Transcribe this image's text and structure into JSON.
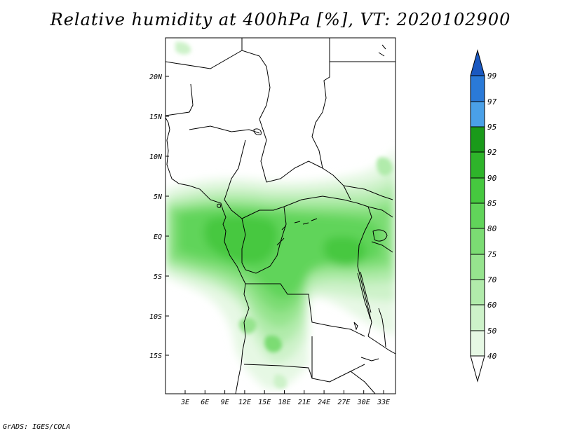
{
  "title": "Relative humidity at 400hPa [%], VT: 2020102900",
  "footer": "GrADS: IGES/COLA",
  "map": {
    "lat_labels": [
      "20N",
      "15N",
      "10N",
      "5N",
      "EQ",
      "5S",
      "10S",
      "15S"
    ],
    "lon_labels": [
      "3E",
      "6E",
      "9E",
      "12E",
      "15E",
      "18E",
      "21E",
      "24E",
      "27E",
      "30E",
      "33E"
    ]
  },
  "colorbar": {
    "labels": [
      "99",
      "97",
      "95",
      "92",
      "90",
      "85",
      "80",
      "75",
      "70",
      "60",
      "50",
      "40"
    ],
    "colors": {
      "lt40": "#ffffff",
      "40_50": "#e6f8e4",
      "50_60": "#cdf2c9",
      "60_70": "#b1ebab",
      "70_75": "#96e48e",
      "75_80": "#7bdc73",
      "80_85": "#61d45a",
      "85_90": "#46c83f",
      "90_92": "#2eb42a",
      "92_95": "#1a9a1a",
      "95_97": "#4aa0e8",
      "97_99": "#2a7ad8",
      "gt99": "#1a58c0"
    }
  }
}
